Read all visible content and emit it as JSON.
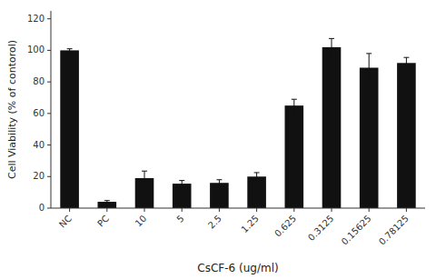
{
  "chart_data": {
    "type": "bar",
    "categories": [
      "NC",
      "PC",
      "10",
      "5",
      "2.5",
      "1.25",
      "0.625",
      "0.3125",
      "0.15625",
      "0.78125"
    ],
    "values": [
      100,
      4,
      19,
      15.5,
      16,
      20,
      65,
      102,
      89,
      92
    ],
    "errors": [
      1.0,
      0.8,
      4.5,
      2.0,
      2.0,
      2.5,
      4.0,
      5.5,
      9.0,
      3.5
    ],
    "color": "#111111",
    "xlabel": "CsCF-6 (ug/ml)",
    "ylabel": "Cell Viability (% of contorol)",
    "ylim": [
      0,
      125
    ],
    "yticks": [
      0,
      20,
      40,
      60,
      80,
      100,
      120
    ],
    "grid": false
  }
}
